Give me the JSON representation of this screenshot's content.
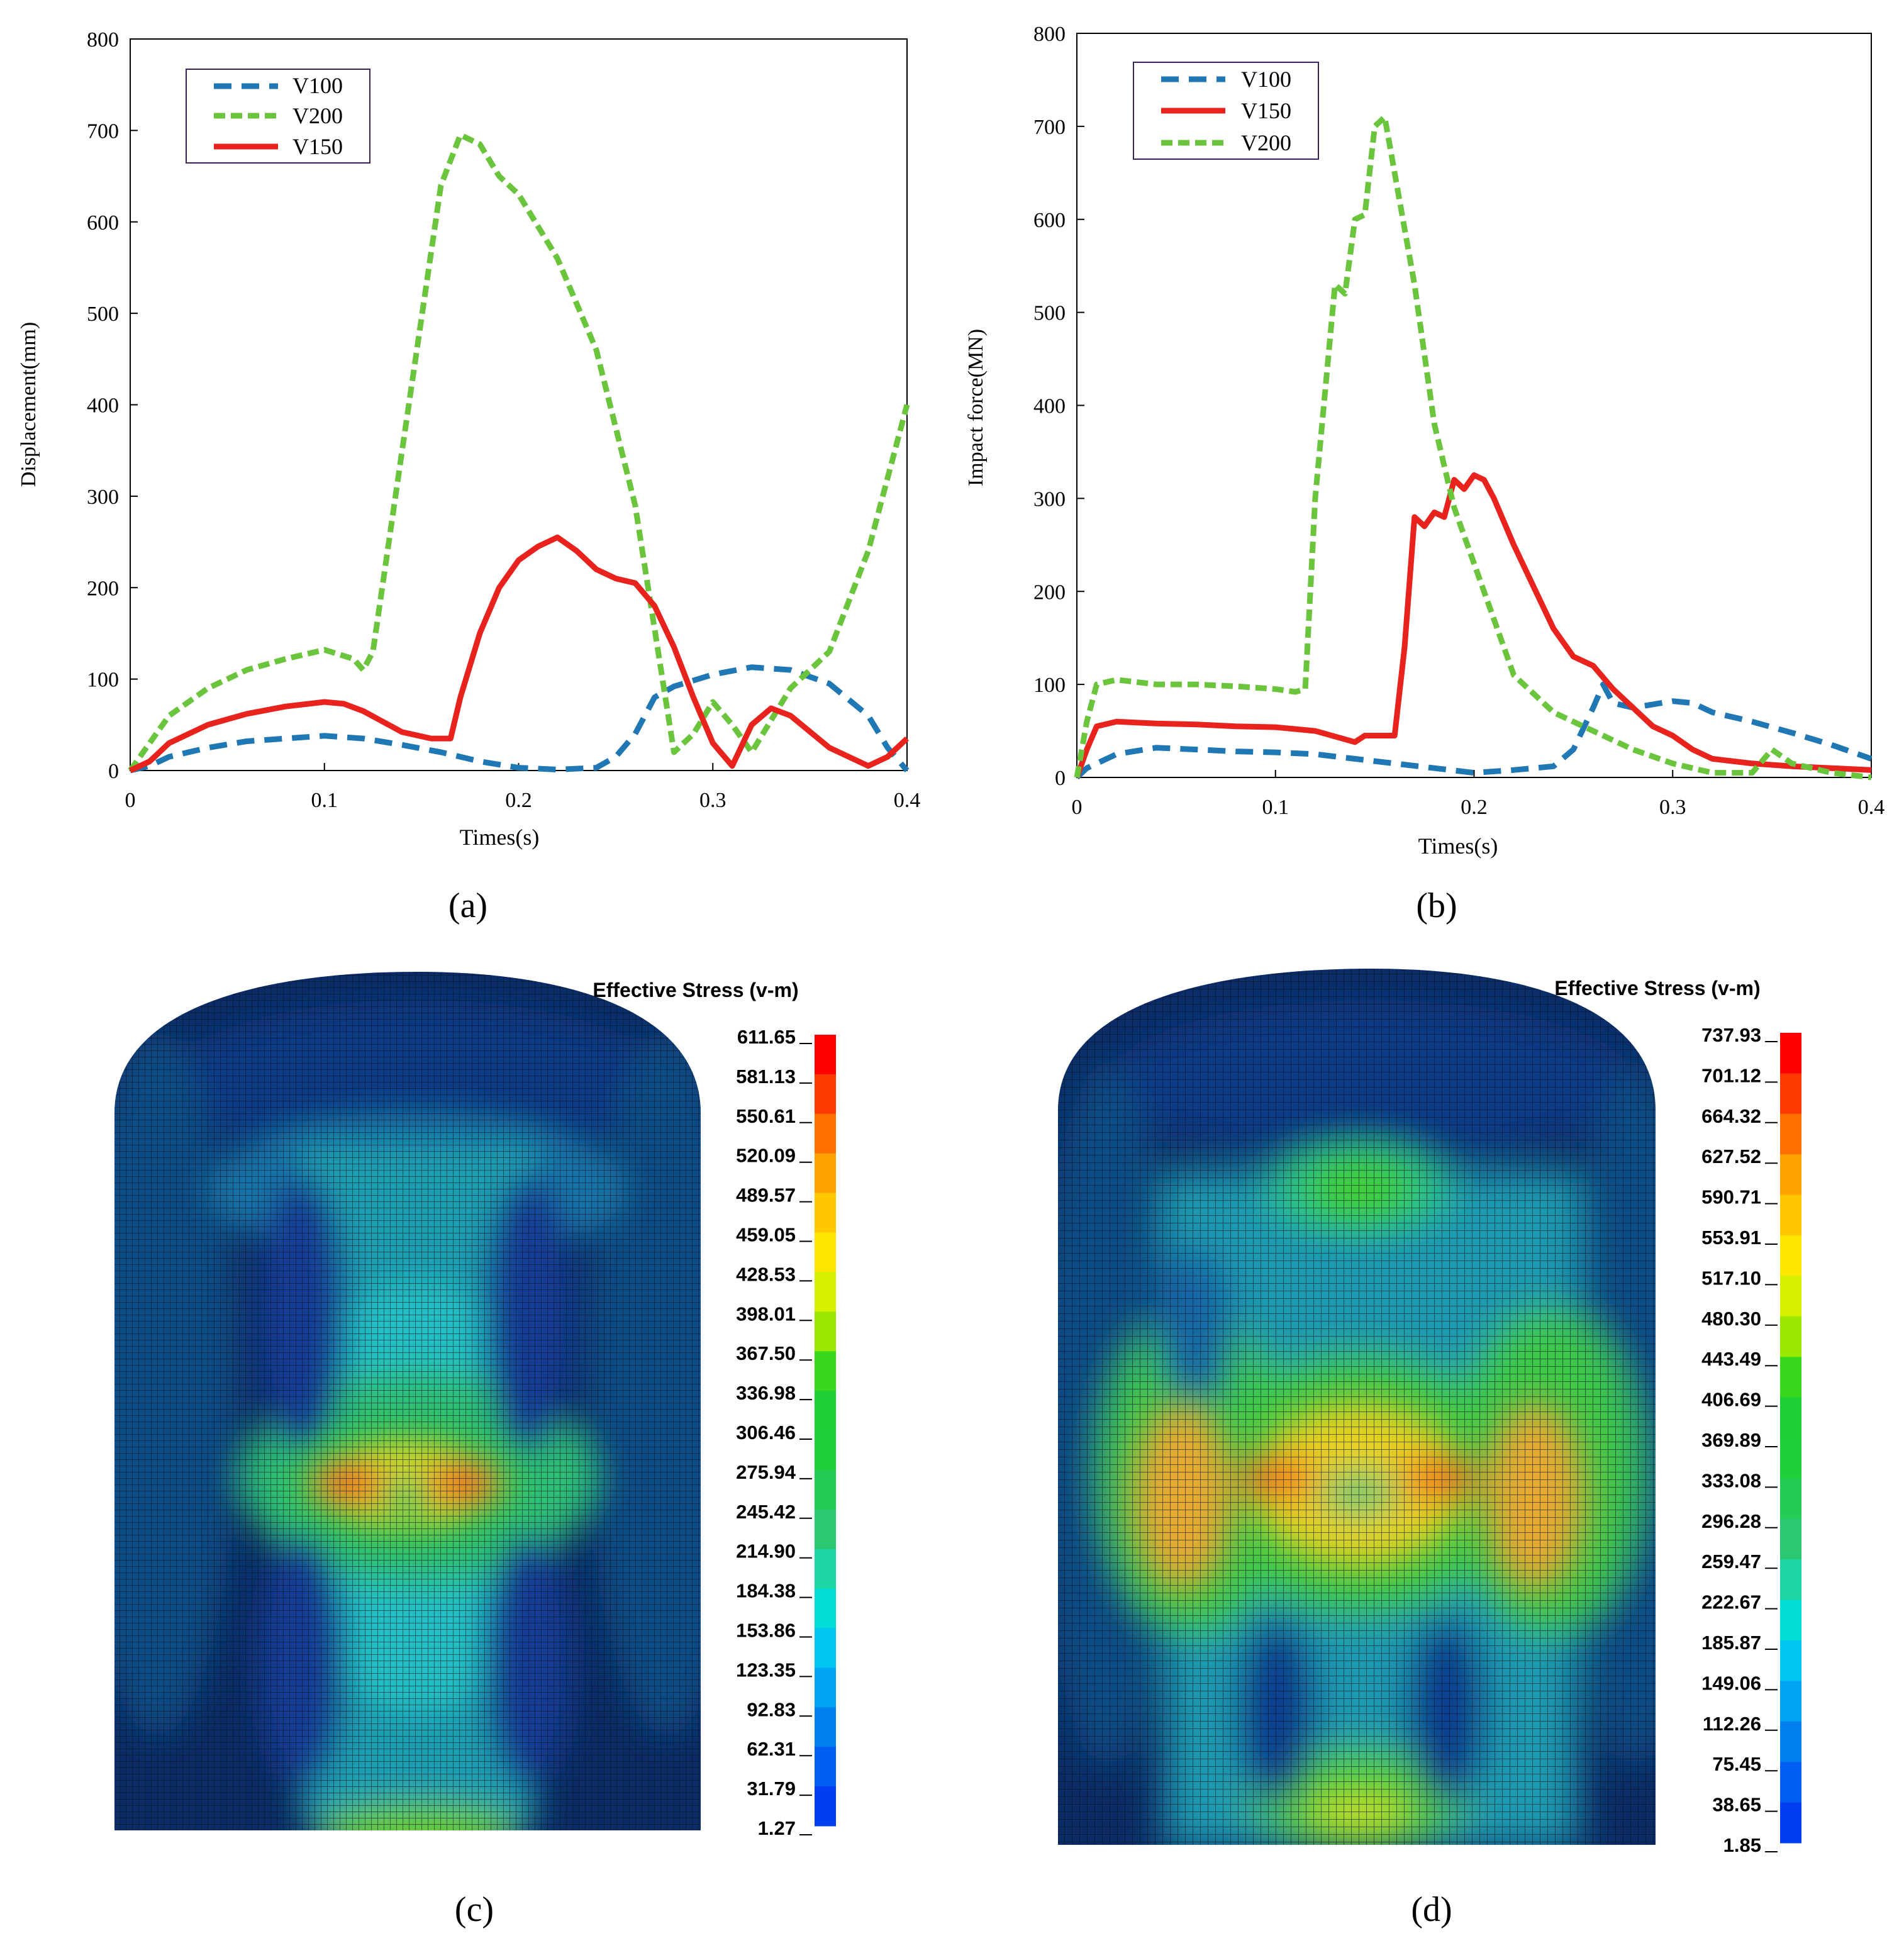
{
  "chart_data": [
    {
      "type": "line",
      "panel": "(a)",
      "xlabel": "Times(s)",
      "ylabel": "Displacement(mm)",
      "xlim": [
        0,
        0.4
      ],
      "ylim": [
        0,
        800
      ],
      "xticks": [
        0,
        0.1,
        0.2,
        0.3,
        0.4
      ],
      "xtick_labels": [
        "0",
        "0.1",
        "0.2",
        "0.3",
        "0.4"
      ],
      "yticks": [
        0,
        100,
        200,
        300,
        400,
        500,
        600,
        700,
        800
      ],
      "ytick_labels": [
        "0",
        "100",
        "200",
        "300",
        "400",
        "500",
        "600",
        "700",
        "800"
      ],
      "legend_position": "top-left",
      "legend": [
        "V100",
        "V200",
        "V150"
      ],
      "series": [
        {
          "name": "V100",
          "color": "#1f77b4",
          "style": "dashed",
          "x": [
            0,
            0.01,
            0.02,
            0.04,
            0.06,
            0.08,
            0.1,
            0.12,
            0.14,
            0.16,
            0.18,
            0.2,
            0.22,
            0.24,
            0.25,
            0.26,
            0.27,
            0.28,
            0.3,
            0.32,
            0.34,
            0.36,
            0.38,
            0.39,
            0.4
          ],
          "values": [
            0,
            5,
            15,
            25,
            32,
            35,
            38,
            35,
            28,
            20,
            10,
            3,
            1,
            3,
            15,
            40,
            80,
            92,
            105,
            113,
            110,
            95,
            60,
            25,
            0
          ]
        },
        {
          "name": "V200",
          "color": "#6ac43c",
          "style": "dashed",
          "x": [
            0,
            0.01,
            0.02,
            0.04,
            0.06,
            0.08,
            0.1,
            0.115,
            0.12,
            0.125,
            0.14,
            0.16,
            0.17,
            0.18,
            0.19,
            0.2,
            0.22,
            0.24,
            0.26,
            0.28,
            0.29,
            0.3,
            0.31,
            0.32,
            0.34,
            0.36,
            0.38,
            0.4
          ],
          "values": [
            0,
            30,
            60,
            90,
            110,
            122,
            132,
            122,
            110,
            130,
            350,
            640,
            695,
            685,
            650,
            630,
            560,
            460,
            290,
            20,
            40,
            75,
            50,
            20,
            90,
            130,
            240,
            400
          ]
        },
        {
          "name": "V150",
          "color": "#e8221c",
          "style": "solid",
          "x": [
            0,
            0.01,
            0.02,
            0.04,
            0.06,
            0.08,
            0.1,
            0.11,
            0.12,
            0.14,
            0.155,
            0.165,
            0.17,
            0.18,
            0.19,
            0.2,
            0.21,
            0.22,
            0.23,
            0.24,
            0.25,
            0.26,
            0.27,
            0.28,
            0.29,
            0.3,
            0.31,
            0.32,
            0.33,
            0.34,
            0.36,
            0.38,
            0.39,
            0.4
          ],
          "values": [
            0,
            10,
            30,
            50,
            62,
            70,
            75,
            73,
            65,
            42,
            35,
            35,
            80,
            150,
            200,
            230,
            245,
            255,
            240,
            220,
            210,
            205,
            180,
            135,
            80,
            30,
            5,
            50,
            68,
            60,
            25,
            5,
            15,
            35
          ]
        }
      ]
    },
    {
      "type": "line",
      "panel": "(b)",
      "xlabel": "Times(s)",
      "ylabel": "Impact force(MN)",
      "xlim": [
        0,
        0.4
      ],
      "ylim": [
        0,
        800
      ],
      "xticks": [
        0,
        0.1,
        0.2,
        0.3,
        0.4
      ],
      "xtick_labels": [
        "0",
        "0.1",
        "0.2",
        "0.3",
        "0.4"
      ],
      "yticks": [
        0,
        100,
        200,
        300,
        400,
        500,
        600,
        700,
        800
      ],
      "ytick_labels": [
        "0",
        "100",
        "200",
        "300",
        "400",
        "500",
        "600",
        "700",
        "800"
      ],
      "legend_position": "top-left",
      "legend": [
        "V100",
        "V150",
        "V200"
      ],
      "series": [
        {
          "name": "V100",
          "color": "#1f77b4",
          "style": "dashed",
          "x": [
            0,
            0.005,
            0.02,
            0.04,
            0.06,
            0.08,
            0.1,
            0.12,
            0.14,
            0.16,
            0.18,
            0.2,
            0.22,
            0.24,
            0.25,
            0.26,
            0.265,
            0.27,
            0.28,
            0.3,
            0.31,
            0.32,
            0.34,
            0.36,
            0.38,
            0.4
          ],
          "values": [
            0,
            10,
            25,
            32,
            30,
            28,
            27,
            25,
            20,
            15,
            10,
            5,
            8,
            12,
            30,
            75,
            100,
            80,
            75,
            82,
            80,
            70,
            60,
            48,
            35,
            20
          ]
        },
        {
          "name": "V150",
          "color": "#e8221c",
          "style": "solid",
          "x": [
            0,
            0.005,
            0.01,
            0.02,
            0.04,
            0.06,
            0.08,
            0.1,
            0.12,
            0.14,
            0.145,
            0.15,
            0.16,
            0.165,
            0.17,
            0.175,
            0.18,
            0.185,
            0.19,
            0.195,
            0.2,
            0.205,
            0.21,
            0.22,
            0.23,
            0.24,
            0.25,
            0.26,
            0.27,
            0.28,
            0.29,
            0.3,
            0.31,
            0.32,
            0.34,
            0.36,
            0.38,
            0.4
          ],
          "values": [
            0,
            30,
            55,
            60,
            58,
            57,
            55,
            54,
            50,
            38,
            45,
            45,
            45,
            140,
            280,
            270,
            285,
            280,
            320,
            310,
            325,
            320,
            300,
            250,
            205,
            160,
            130,
            120,
            95,
            75,
            55,
            45,
            30,
            20,
            15,
            12,
            10,
            8
          ]
        },
        {
          "name": "V200",
          "color": "#6ac43c",
          "style": "dashed",
          "x": [
            0,
            0.005,
            0.01,
            0.02,
            0.04,
            0.06,
            0.08,
            0.1,
            0.11,
            0.115,
            0.12,
            0.13,
            0.135,
            0.14,
            0.145,
            0.15,
            0.155,
            0.16,
            0.17,
            0.18,
            0.19,
            0.2,
            0.21,
            0.22,
            0.24,
            0.26,
            0.28,
            0.3,
            0.32,
            0.34,
            0.35,
            0.36,
            0.38,
            0.4
          ],
          "values": [
            0,
            60,
            100,
            105,
            100,
            100,
            98,
            95,
            92,
            95,
            300,
            530,
            520,
            600,
            605,
            700,
            710,
            650,
            530,
            380,
            290,
            230,
            170,
            110,
            70,
            50,
            30,
            15,
            5,
            5,
            30,
            15,
            5,
            0
          ]
        }
      ]
    },
    {
      "type": "heatmap",
      "panel": "(c)",
      "title": "Effective Stress (v-m)",
      "colorbar_labels": [
        "611.65",
        "581.13",
        "550.61",
        "520.09",
        "489.57",
        "459.05",
        "428.53",
        "398.01",
        "367.50",
        "336.98",
        "306.46",
        "275.94",
        "245.42",
        "214.90",
        "184.38",
        "153.86",
        "123.35",
        "92.83",
        "62.31",
        "31.79",
        "1.27"
      ],
      "max_stress": 611.65
    },
    {
      "type": "heatmap",
      "panel": "(d)",
      "title": "Effective Stress (v-m)",
      "colorbar_labels": [
        "737.93",
        "701.12",
        "664.32",
        "627.52",
        "590.71",
        "553.91",
        "517.10",
        "480.30",
        "443.49",
        "406.69",
        "369.89",
        "333.08",
        "296.28",
        "259.47",
        "222.67",
        "185.87",
        "149.06",
        "112.26",
        "75.45",
        "38.65",
        "1.85"
      ],
      "max_stress": 737.93
    }
  ],
  "panel_labels": [
    "(a)",
    "(b)",
    "(c)",
    "(d)"
  ],
  "colorbar_colors": [
    "#ff0000",
    "#ff3a00",
    "#ff6f00",
    "#ffa100",
    "#ffc800",
    "#ffe600",
    "#d5f000",
    "#9ae800",
    "#38d81d",
    "#1ed033",
    "#1fd03b",
    "#24cc55",
    "#2ac870",
    "#1ed4a4",
    "#00ddd6",
    "#00c6f0",
    "#00a4f0",
    "#007ff0",
    "#005ff0",
    "#003ef0",
    "#001ef0"
  ]
}
